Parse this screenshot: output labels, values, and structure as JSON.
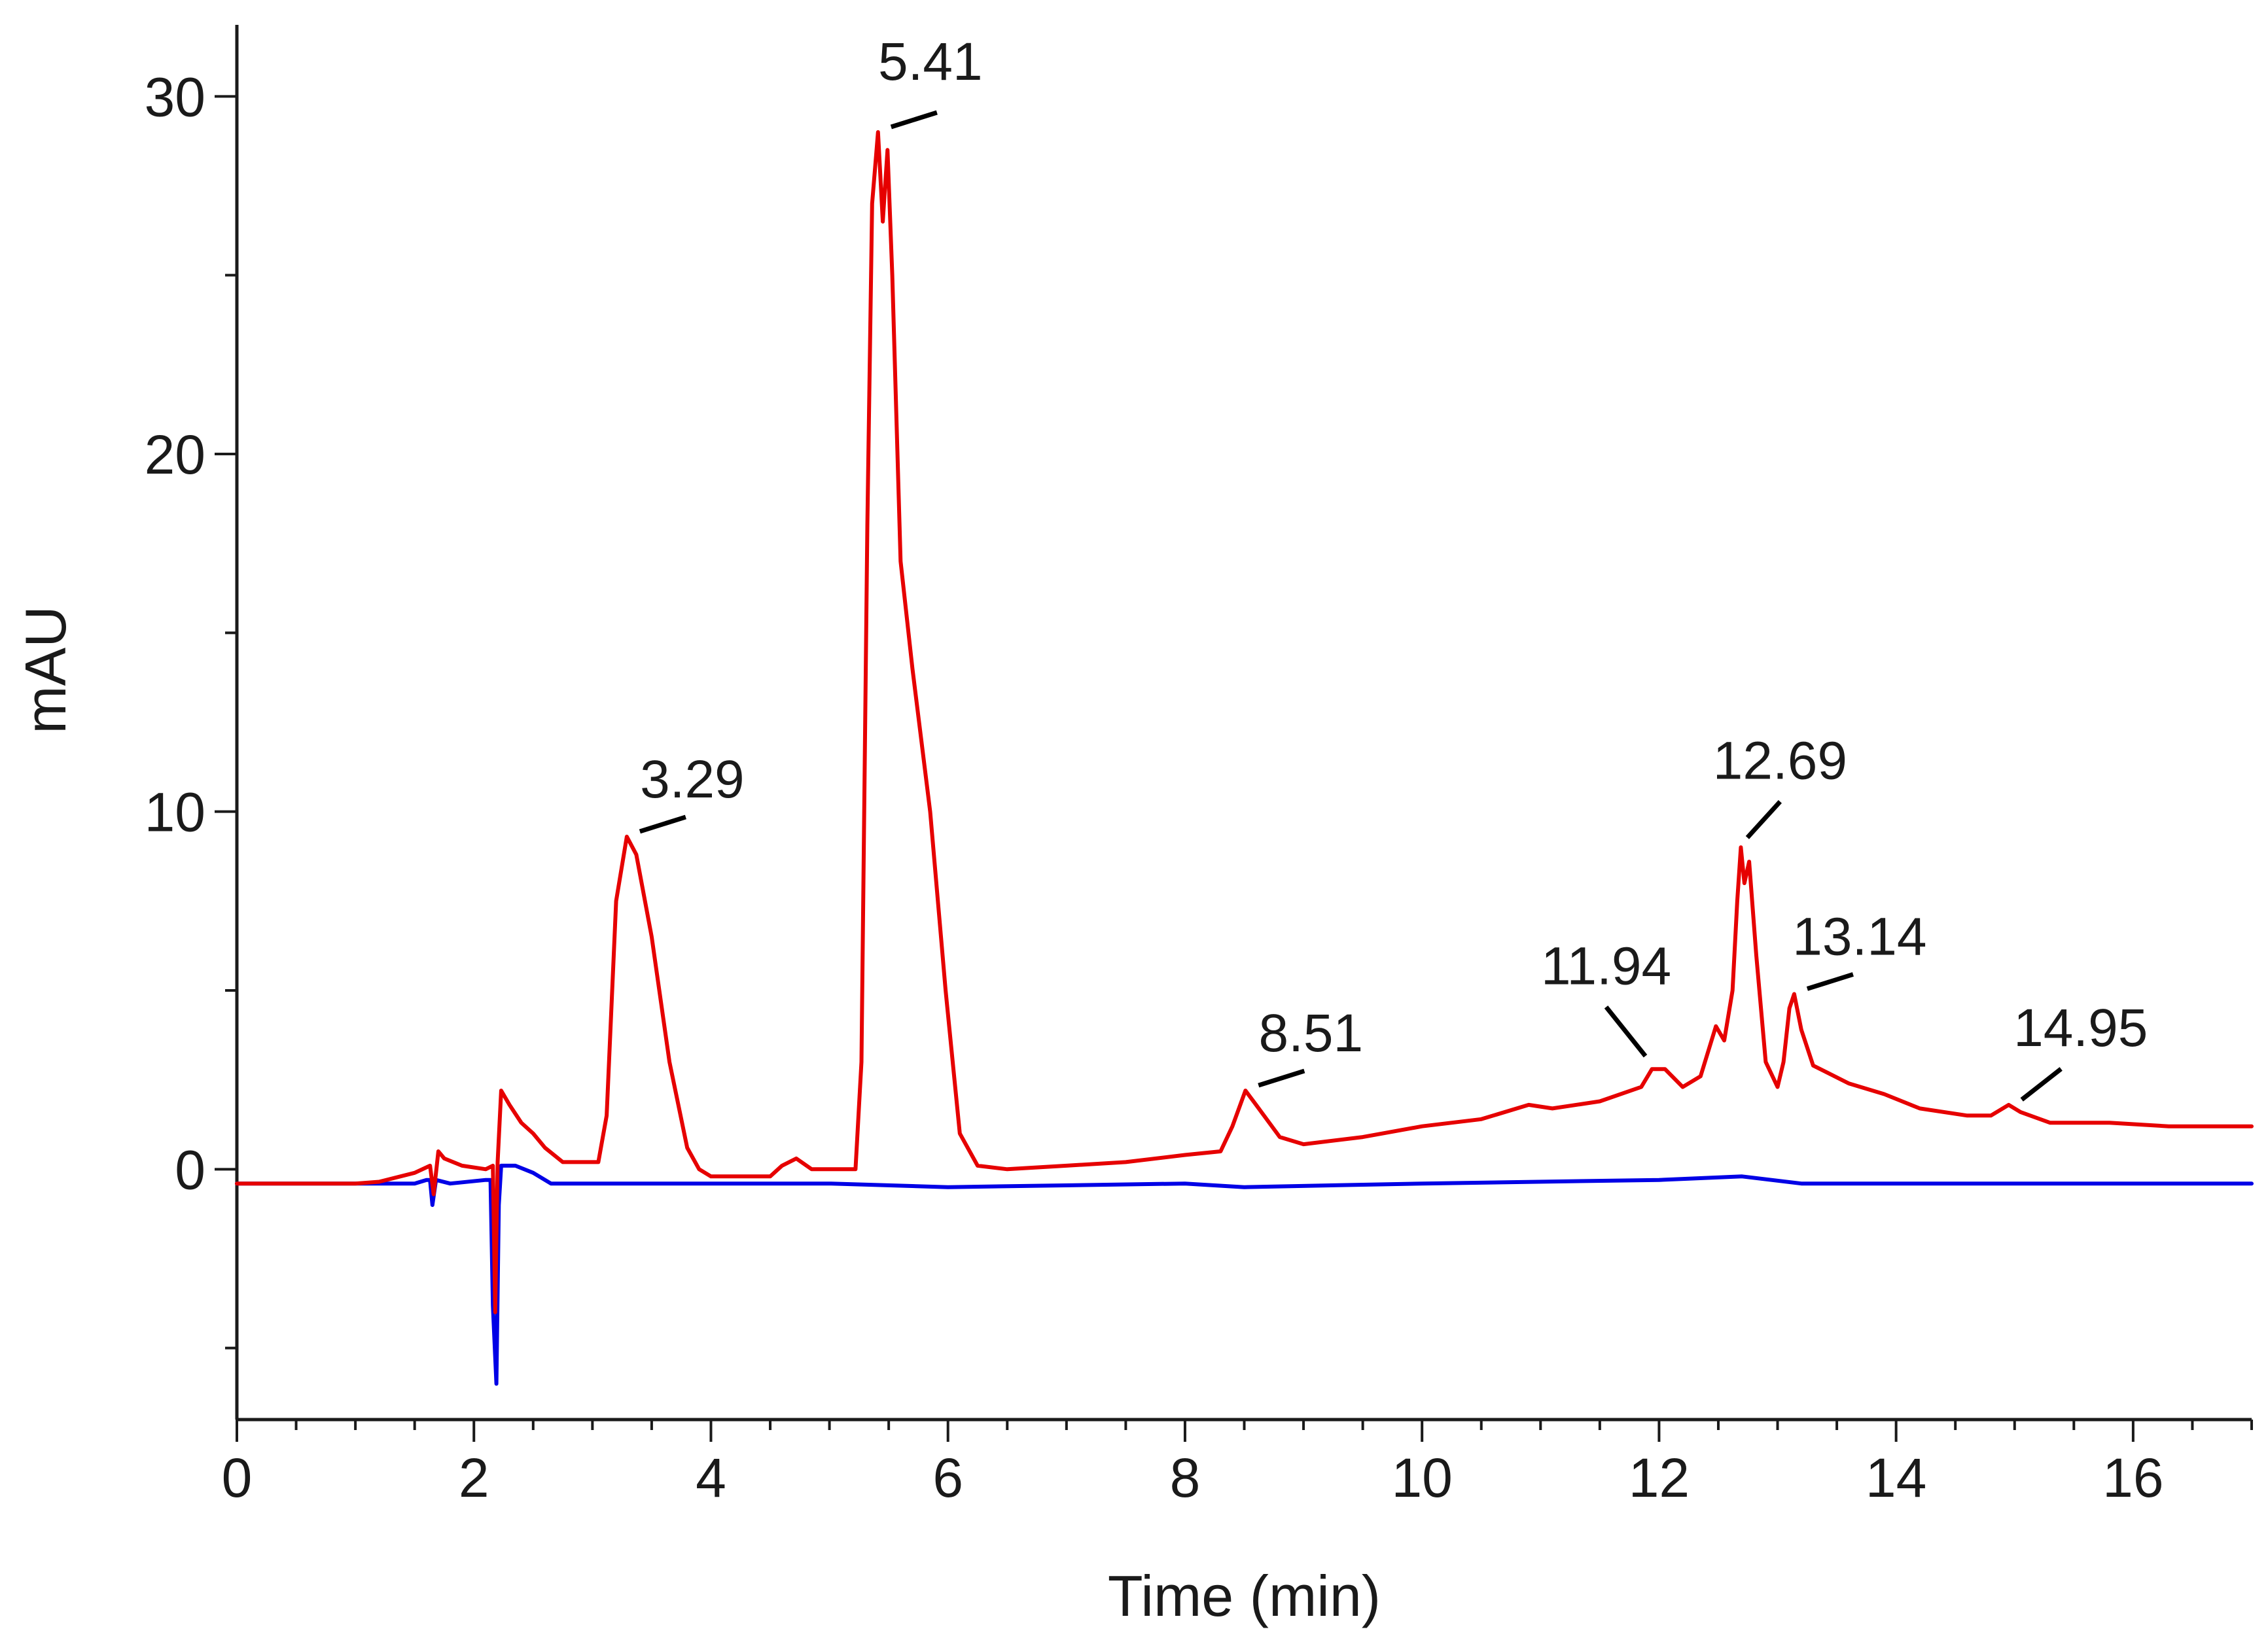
{
  "chart_data": {
    "type": "line",
    "title": "",
    "xlabel": "Time (min)",
    "ylabel": "mAU",
    "xlim": [
      0,
      17
    ],
    "ylim": [
      -7,
      32
    ],
    "x_ticks": [
      0,
      2,
      4,
      6,
      8,
      10,
      12,
      14,
      16
    ],
    "y_ticks": [
      0,
      10,
      20,
      30
    ],
    "x_minor_step": 0.5,
    "y_minor_step": 5,
    "grid": false,
    "colors": {
      "series_1": "#e60000",
      "series_2": "#0000e6",
      "axis": "#1a1a1a",
      "label_line": "#000000"
    },
    "series": [
      {
        "color": "#e60000",
        "points": [
          [
            0,
            -0.4
          ],
          [
            1.0,
            -0.4
          ],
          [
            1.2,
            -0.35
          ],
          [
            1.5,
            -0.1
          ],
          [
            1.63,
            0.1
          ],
          [
            1.66,
            -0.7
          ],
          [
            1.7,
            0.5
          ],
          [
            1.75,
            0.3
          ],
          [
            1.9,
            0.1
          ],
          [
            2.1,
            0.0
          ],
          [
            2.16,
            0.1
          ],
          [
            2.18,
            -4.0
          ],
          [
            2.2,
            0.2
          ],
          [
            2.23,
            2.2
          ],
          [
            2.3,
            1.8
          ],
          [
            2.4,
            1.3
          ],
          [
            2.5,
            1.0
          ],
          [
            2.6,
            0.6
          ],
          [
            2.75,
            0.2
          ],
          [
            3.05,
            0.2
          ],
          [
            3.12,
            1.5
          ],
          [
            3.2,
            7.5
          ],
          [
            3.29,
            9.3
          ],
          [
            3.37,
            8.8
          ],
          [
            3.5,
            6.5
          ],
          [
            3.65,
            3.0
          ],
          [
            3.8,
            0.6
          ],
          [
            3.9,
            0.0
          ],
          [
            4.0,
            -0.2
          ],
          [
            4.5,
            -0.2
          ],
          [
            4.6,
            0.1
          ],
          [
            4.72,
            0.3
          ],
          [
            4.85,
            0.0
          ],
          [
            5.22,
            0.0
          ],
          [
            5.27,
            3.0
          ],
          [
            5.32,
            18.0
          ],
          [
            5.36,
            27.0
          ],
          [
            5.41,
            29.0
          ],
          [
            5.45,
            26.5
          ],
          [
            5.49,
            28.5
          ],
          [
            5.53,
            25.0
          ],
          [
            5.6,
            17.0
          ],
          [
            5.7,
            14.0
          ],
          [
            5.85,
            10.0
          ],
          [
            5.98,
            5.0
          ],
          [
            6.1,
            1.0
          ],
          [
            6.25,
            0.1
          ],
          [
            6.5,
            0.0
          ],
          [
            7.0,
            0.1
          ],
          [
            7.5,
            0.2
          ],
          [
            8.0,
            0.4
          ],
          [
            8.3,
            0.5
          ],
          [
            8.4,
            1.2
          ],
          [
            8.51,
            2.2
          ],
          [
            8.6,
            1.8
          ],
          [
            8.8,
            0.9
          ],
          [
            9.0,
            0.7
          ],
          [
            9.5,
            0.9
          ],
          [
            10.0,
            1.2
          ],
          [
            10.5,
            1.4
          ],
          [
            10.9,
            1.8
          ],
          [
            11.1,
            1.7
          ],
          [
            11.5,
            1.9
          ],
          [
            11.85,
            2.3
          ],
          [
            11.94,
            2.8
          ],
          [
            12.05,
            2.8
          ],
          [
            12.2,
            2.3
          ],
          [
            12.35,
            2.6
          ],
          [
            12.48,
            4.0
          ],
          [
            12.55,
            3.6
          ],
          [
            12.62,
            5.0
          ],
          [
            12.66,
            7.5
          ],
          [
            12.69,
            9.0
          ],
          [
            12.72,
            8.0
          ],
          [
            12.76,
            8.6
          ],
          [
            12.82,
            6.0
          ],
          [
            12.9,
            3.0
          ],
          [
            13.0,
            2.3
          ],
          [
            13.05,
            3.0
          ],
          [
            13.1,
            4.5
          ],
          [
            13.14,
            4.9
          ],
          [
            13.2,
            3.9
          ],
          [
            13.3,
            2.9
          ],
          [
            13.6,
            2.4
          ],
          [
            13.9,
            2.1
          ],
          [
            14.2,
            1.7
          ],
          [
            14.6,
            1.5
          ],
          [
            14.8,
            1.5
          ],
          [
            14.95,
            1.8
          ],
          [
            15.05,
            1.6
          ],
          [
            15.3,
            1.3
          ],
          [
            15.8,
            1.3
          ],
          [
            16.3,
            1.2
          ],
          [
            17.0,
            1.2
          ]
        ]
      },
      {
        "color": "#0000e6",
        "points": [
          [
            0,
            -0.4
          ],
          [
            1.5,
            -0.4
          ],
          [
            1.6,
            -0.3
          ],
          [
            1.63,
            -0.3
          ],
          [
            1.65,
            -1.0
          ],
          [
            1.68,
            -0.3
          ],
          [
            1.8,
            -0.4
          ],
          [
            2.1,
            -0.3
          ],
          [
            2.14,
            -0.3
          ],
          [
            2.16,
            -3.8
          ],
          [
            2.19,
            -6.0
          ],
          [
            2.21,
            -1.0
          ],
          [
            2.23,
            0.1
          ],
          [
            2.35,
            0.1
          ],
          [
            2.5,
            -0.1
          ],
          [
            2.65,
            -0.4
          ],
          [
            3.5,
            -0.4
          ],
          [
            5.0,
            -0.4
          ],
          [
            6.0,
            -0.5
          ],
          [
            8.0,
            -0.4
          ],
          [
            8.5,
            -0.5
          ],
          [
            10.0,
            -0.4
          ],
          [
            12.0,
            -0.3
          ],
          [
            12.7,
            -0.2
          ],
          [
            13.2,
            -0.4
          ],
          [
            14.0,
            -0.4
          ],
          [
            15.0,
            -0.4
          ],
          [
            16.0,
            -0.4
          ],
          [
            17.0,
            -0.4
          ]
        ]
      }
    ],
    "annotations": [
      {
        "text": "5.41",
        "x": 5.41,
        "y": 29.0
      },
      {
        "text": "3.29",
        "x": 3.29,
        "y": 9.3
      },
      {
        "text": "8.51",
        "x": 8.51,
        "y": 2.2
      },
      {
        "text": "11.94",
        "x": 11.94,
        "y": 2.8
      },
      {
        "text": "12.69",
        "x": 12.69,
        "y": 9.0
      },
      {
        "text": "13.14",
        "x": 13.14,
        "y": 4.9
      },
      {
        "text": "14.95",
        "x": 14.95,
        "y": 1.8
      }
    ]
  }
}
